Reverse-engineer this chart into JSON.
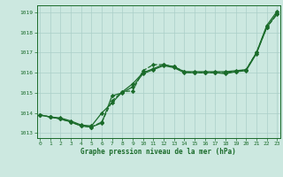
{
  "title": "Graphe pression niveau de la mer (hPa)",
  "bg_color": "#cce8e0",
  "grid_color": "#aacfc8",
  "line_color": "#1a6b2a",
  "xlim": [
    -0.3,
    23.3
  ],
  "ylim": [
    1012.75,
    1019.35
  ],
  "yticks": [
    1013,
    1014,
    1015,
    1016,
    1017,
    1018,
    1019
  ],
  "xticks": [
    0,
    1,
    2,
    3,
    4,
    5,
    6,
    7,
    8,
    9,
    10,
    11,
    12,
    13,
    14,
    15,
    16,
    17,
    18,
    19,
    20,
    21,
    22,
    23
  ],
  "series": [
    {
      "x": [
        0,
        1,
        2,
        3,
        4,
        5,
        6,
        7,
        8,
        9,
        10,
        11,
        12,
        13,
        14,
        15,
        16,
        17,
        18,
        19,
        20,
        21,
        22,
        23
      ],
      "y": [
        1013.9,
        1013.8,
        1013.75,
        1013.6,
        1013.4,
        1013.35,
        1014.0,
        1014.5,
        1015.05,
        1015.45,
        1016.0,
        1016.2,
        1016.4,
        1016.3,
        1016.05,
        1016.05,
        1016.05,
        1016.05,
        1016.05,
        1016.1,
        1016.15,
        1017.0,
        1018.35,
        1019.05
      ],
      "marker": "D",
      "markersize": 2.2,
      "linewidth": 0.9,
      "linestyle": "-"
    },
    {
      "x": [
        0,
        1,
        2,
        3,
        4,
        5,
        6,
        7,
        8,
        9,
        10,
        11,
        12,
        13,
        14,
        15,
        16,
        17,
        18,
        19,
        20,
        21,
        22,
        23
      ],
      "y": [
        1013.9,
        1013.8,
        1013.7,
        1013.55,
        1013.35,
        1013.3,
        1013.55,
        1014.6,
        1015.05,
        1015.1,
        1016.1,
        1016.4,
        1016.4,
        1016.3,
        1016.05,
        1016.0,
        1016.0,
        1016.0,
        1016.0,
        1016.05,
        1016.15,
        1017.0,
        1018.25,
        1018.9
      ],
      "marker": "D",
      "markersize": 2.2,
      "linewidth": 0.9,
      "linestyle": "--"
    },
    {
      "x": [
        0,
        1,
        2,
        3,
        4,
        5,
        6,
        7,
        8,
        9,
        10,
        11,
        12,
        13,
        14,
        15,
        16,
        17,
        18,
        19,
        20,
        21,
        22,
        23
      ],
      "y": [
        1013.9,
        1013.8,
        1013.7,
        1013.55,
        1013.35,
        1013.3,
        1013.5,
        1014.85,
        1015.0,
        1015.3,
        1015.95,
        1016.15,
        1016.35,
        1016.25,
        1016.0,
        1016.0,
        1016.0,
        1016.0,
        1015.95,
        1016.05,
        1016.1,
        1016.95,
        1018.25,
        1018.95
      ],
      "marker": "D",
      "markersize": 2.2,
      "linewidth": 0.9,
      "linestyle": "-"
    }
  ]
}
